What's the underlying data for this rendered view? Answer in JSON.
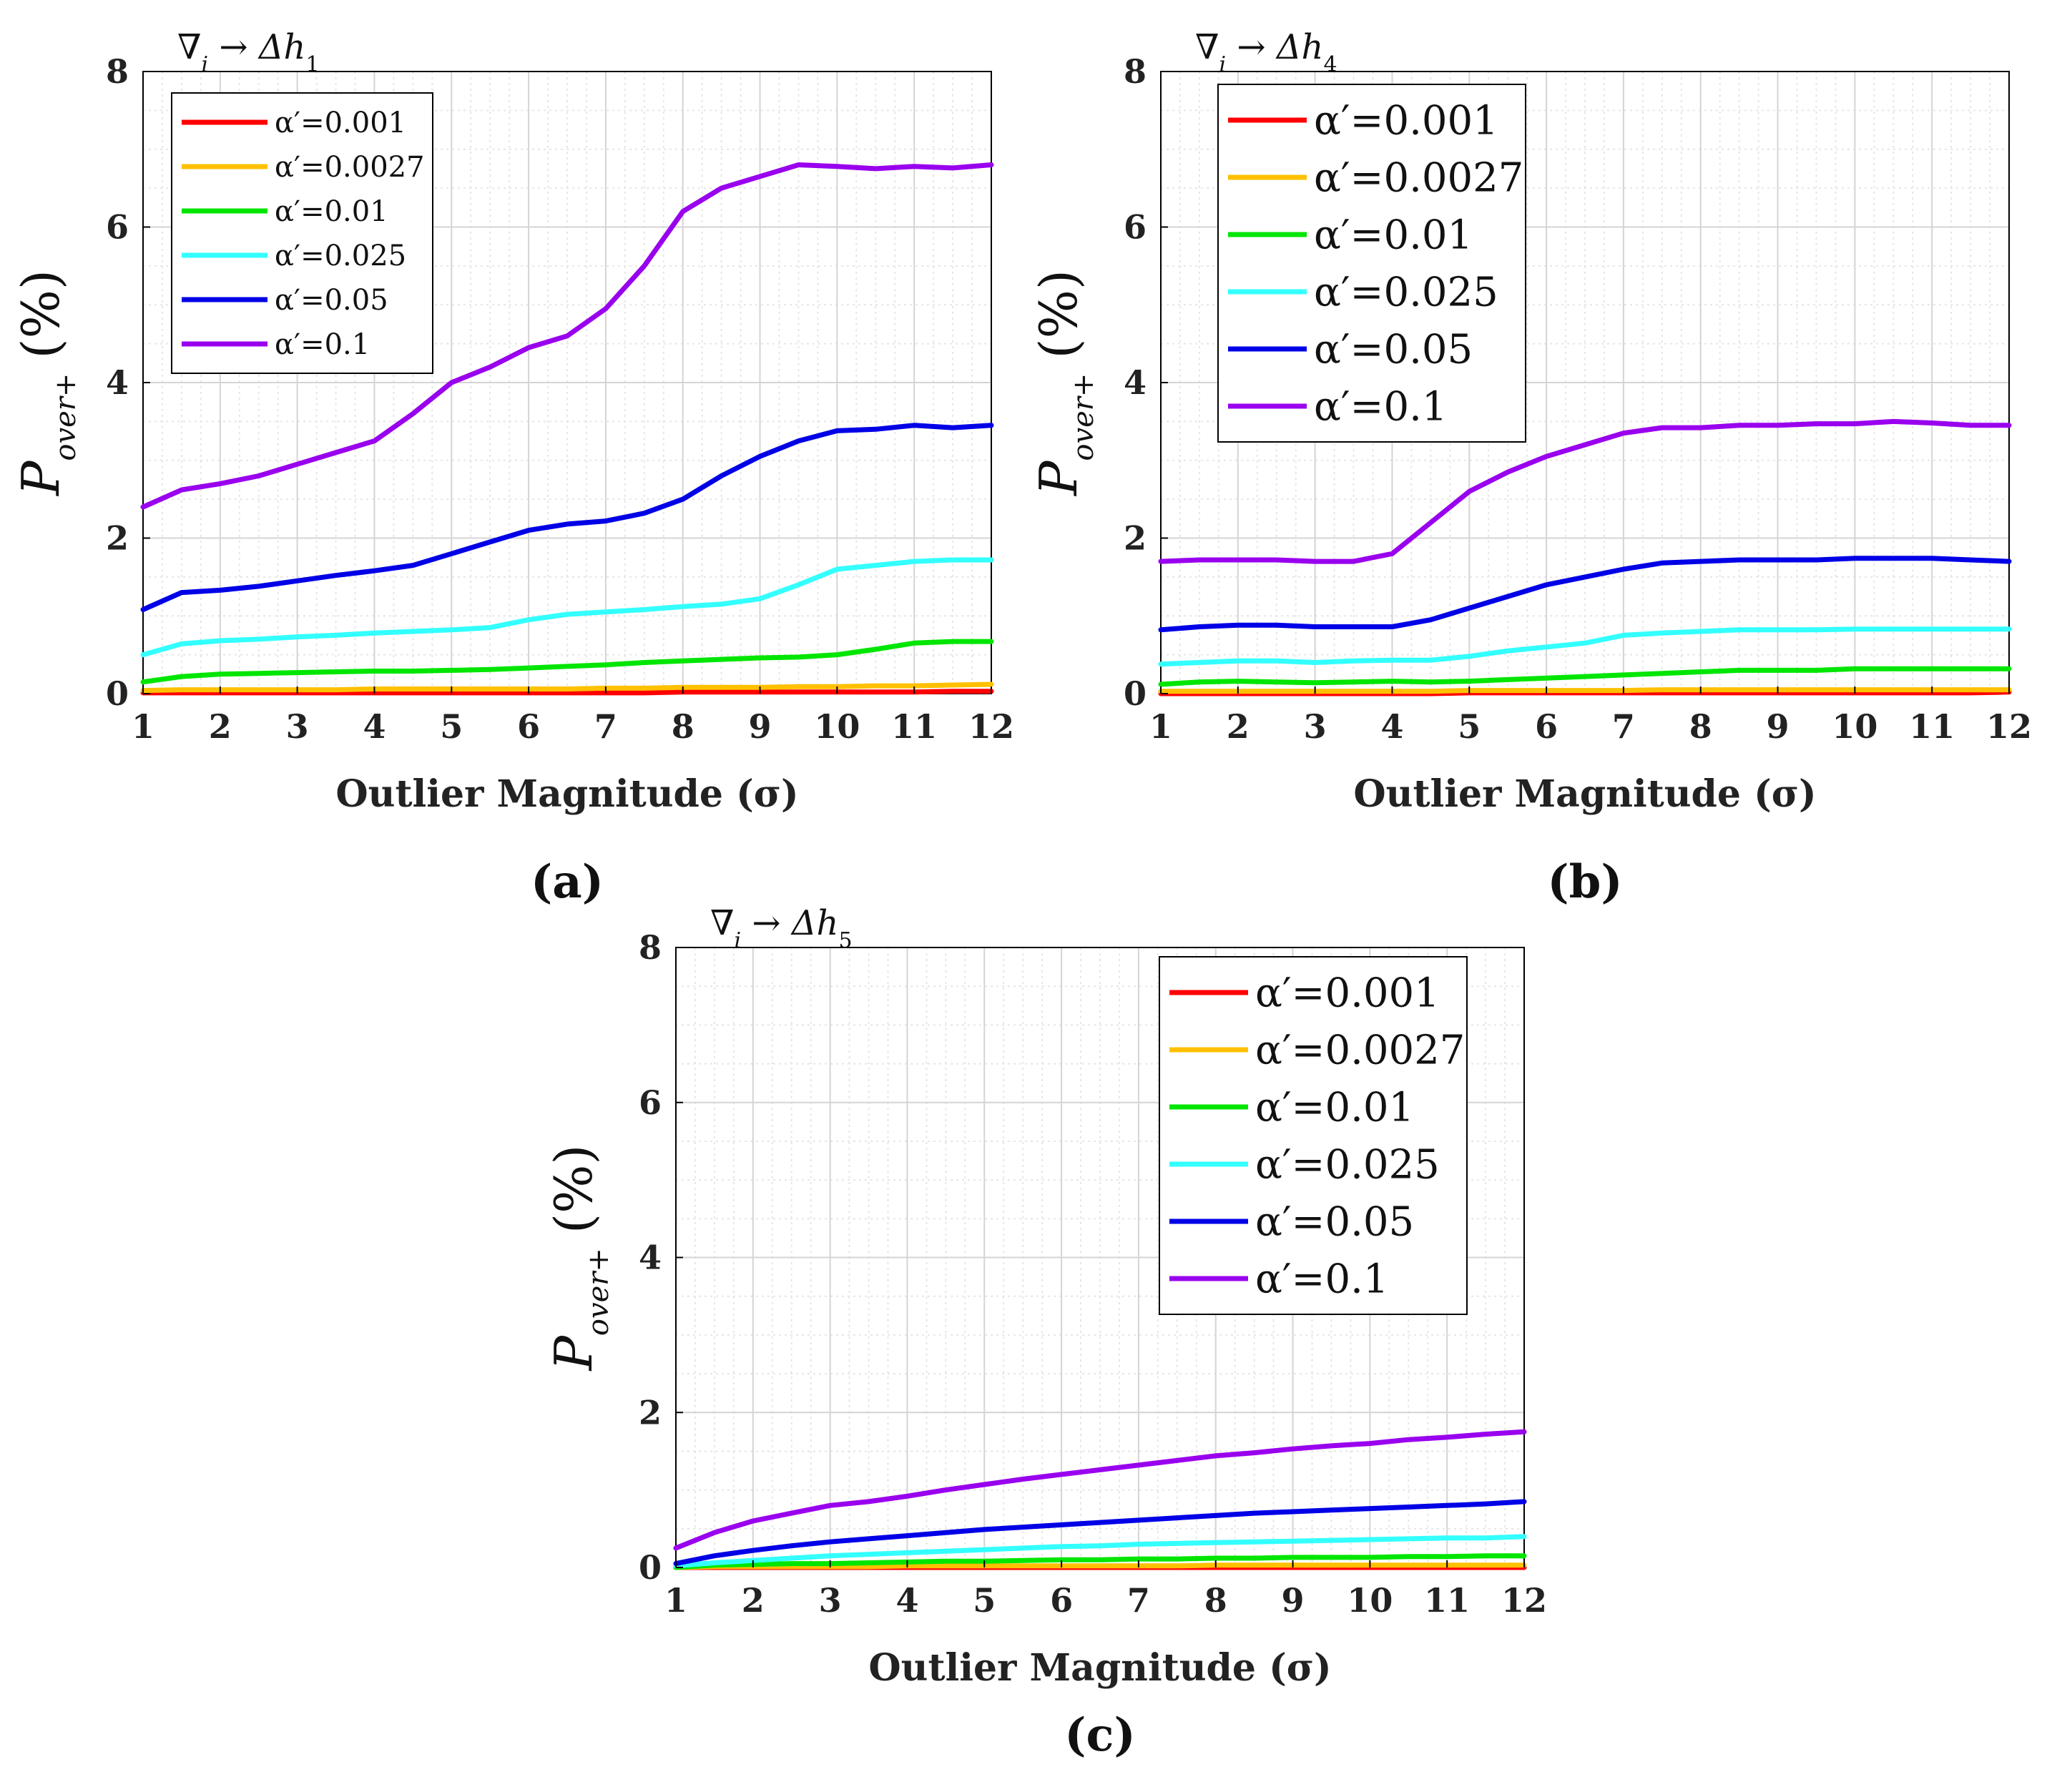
{
  "figure": {
    "captions": [
      "(a)",
      "(b)",
      "(c)"
    ]
  },
  "chart_data": [
    {
      "type": "line",
      "panel": "(a)",
      "title": "∇i → Δh1",
      "title_parts": {
        "nabla": "∇",
        "nabla_sub": "i",
        "arrow": " → ",
        "delta": "Δh",
        "delta_sub": "1"
      },
      "xlabel": "Outlier Magnitude (σ)",
      "ylabel": {
        "main": "P",
        "sub": "over+",
        "unit": "(%)"
      },
      "xlim": [
        1,
        12
      ],
      "ylim": [
        0,
        8
      ],
      "xticks": [
        1,
        2,
        3,
        4,
        5,
        6,
        7,
        8,
        9,
        10,
        11,
        12
      ],
      "yticks": [
        0,
        2,
        4,
        6,
        8
      ],
      "grid": true,
      "legend_position": "top-left",
      "x": [
        1,
        1.5,
        2,
        2.5,
        3,
        3.5,
        4,
        4.5,
        5,
        5.5,
        6,
        6.5,
        7,
        7.5,
        8,
        8.5,
        9,
        9.5,
        10,
        10.5,
        11,
        11.5,
        12
      ],
      "series": [
        {
          "name": "α′=0.001",
          "color": "#ff0000",
          "values": [
            0.01,
            0.01,
            0.01,
            0.01,
            0.01,
            0.01,
            0.01,
            0.01,
            0.01,
            0.01,
            0.01,
            0.01,
            0.01,
            0.01,
            0.02,
            0.02,
            0.02,
            0.02,
            0.02,
            0.02,
            0.02,
            0.03,
            0.03
          ]
        },
        {
          "name": "α′=0.0027",
          "color": "#ffc000",
          "values": [
            0.04,
            0.05,
            0.05,
            0.05,
            0.05,
            0.05,
            0.06,
            0.06,
            0.06,
            0.06,
            0.06,
            0.06,
            0.07,
            0.07,
            0.08,
            0.08,
            0.08,
            0.09,
            0.09,
            0.1,
            0.1,
            0.11,
            0.12
          ]
        },
        {
          "name": "α′=0.01",
          "color": "#00e600",
          "values": [
            0.15,
            0.22,
            0.25,
            0.26,
            0.27,
            0.28,
            0.29,
            0.29,
            0.3,
            0.31,
            0.33,
            0.35,
            0.37,
            0.4,
            0.42,
            0.44,
            0.46,
            0.47,
            0.5,
            0.57,
            0.65,
            0.67,
            0.67
          ]
        },
        {
          "name": "α′=0.025",
          "color": "#33ffff",
          "values": [
            0.5,
            0.64,
            0.68,
            0.7,
            0.73,
            0.75,
            0.78,
            0.8,
            0.82,
            0.85,
            0.95,
            1.02,
            1.05,
            1.08,
            1.12,
            1.15,
            1.22,
            1.4,
            1.6,
            1.65,
            1.7,
            1.72,
            1.72
          ]
        },
        {
          "name": "α′=0.05",
          "color": "#0000e6",
          "values": [
            1.08,
            1.3,
            1.33,
            1.38,
            1.45,
            1.52,
            1.58,
            1.65,
            1.8,
            1.95,
            2.1,
            2.18,
            2.22,
            2.32,
            2.5,
            2.8,
            3.05,
            3.25,
            3.38,
            3.4,
            3.45,
            3.42,
            3.45
          ]
        },
        {
          "name": "α′=0.1",
          "color": "#9900ee",
          "values": [
            2.4,
            2.62,
            2.7,
            2.8,
            2.95,
            3.1,
            3.25,
            3.6,
            4.0,
            4.2,
            4.45,
            4.6,
            4.95,
            5.5,
            6.2,
            6.5,
            6.65,
            6.8,
            6.78,
            6.75,
            6.78,
            6.76,
            6.8
          ]
        }
      ]
    },
    {
      "type": "line",
      "panel": "(b)",
      "title": "∇i → Δh4",
      "title_parts": {
        "nabla": "∇",
        "nabla_sub": "i",
        "arrow": " → ",
        "delta": "Δh",
        "delta_sub": "4"
      },
      "xlabel": "Outlier Magnitude (σ)",
      "ylabel": {
        "main": "P",
        "sub": "over+",
        "unit": "(%)"
      },
      "xlim": [
        1,
        12
      ],
      "ylim": [
        0,
        8
      ],
      "xticks": [
        1,
        2,
        3,
        4,
        5,
        6,
        7,
        8,
        9,
        10,
        11,
        12
      ],
      "yticks": [
        0,
        2,
        4,
        6,
        8
      ],
      "grid": true,
      "legend_position": "top-left",
      "x": [
        1,
        1.5,
        2,
        2.5,
        3,
        3.5,
        4,
        4.5,
        5,
        5.5,
        6,
        6.5,
        7,
        7.5,
        8,
        8.5,
        9,
        9.5,
        10,
        10.5,
        11,
        11.5,
        12
      ],
      "series": [
        {
          "name": "α′=0.001",
          "color": "#ff0000",
          "values": [
            0.0,
            0.0,
            0.0,
            0.0,
            0.0,
            0.0,
            0.0,
            0.0,
            0.01,
            0.01,
            0.01,
            0.01,
            0.01,
            0.01,
            0.01,
            0.01,
            0.01,
            0.01,
            0.01,
            0.01,
            0.01,
            0.01,
            0.02
          ]
        },
        {
          "name": "α′=0.0027",
          "color": "#ffc000",
          "values": [
            0.03,
            0.03,
            0.03,
            0.03,
            0.03,
            0.03,
            0.03,
            0.03,
            0.04,
            0.04,
            0.04,
            0.04,
            0.04,
            0.05,
            0.05,
            0.05,
            0.05,
            0.05,
            0.05,
            0.05,
            0.05,
            0.05,
            0.05
          ]
        },
        {
          "name": "α′=0.01",
          "color": "#00e600",
          "values": [
            0.12,
            0.15,
            0.16,
            0.15,
            0.14,
            0.15,
            0.16,
            0.15,
            0.16,
            0.18,
            0.2,
            0.22,
            0.24,
            0.26,
            0.28,
            0.3,
            0.3,
            0.3,
            0.32,
            0.32,
            0.32,
            0.32,
            0.32
          ]
        },
        {
          "name": "α′=0.025",
          "color": "#33ffff",
          "values": [
            0.38,
            0.4,
            0.42,
            0.42,
            0.4,
            0.42,
            0.43,
            0.43,
            0.48,
            0.55,
            0.6,
            0.65,
            0.75,
            0.78,
            0.8,
            0.82,
            0.82,
            0.82,
            0.83,
            0.83,
            0.83,
            0.83,
            0.83
          ]
        },
        {
          "name": "α′=0.05",
          "color": "#0000e6",
          "values": [
            0.82,
            0.86,
            0.88,
            0.88,
            0.86,
            0.86,
            0.86,
            0.95,
            1.1,
            1.25,
            1.4,
            1.5,
            1.6,
            1.68,
            1.7,
            1.72,
            1.72,
            1.72,
            1.74,
            1.74,
            1.74,
            1.72,
            1.7
          ]
        },
        {
          "name": "α′=0.1",
          "color": "#9900ee",
          "values": [
            1.7,
            1.72,
            1.72,
            1.72,
            1.7,
            1.7,
            1.8,
            2.2,
            2.6,
            2.85,
            3.05,
            3.2,
            3.35,
            3.42,
            3.42,
            3.45,
            3.45,
            3.47,
            3.47,
            3.5,
            3.48,
            3.45,
            3.45
          ]
        }
      ]
    },
    {
      "type": "line",
      "panel": "(c)",
      "title": "∇i → Δh5",
      "title_parts": {
        "nabla": "∇",
        "nabla_sub": "i",
        "arrow": " → ",
        "delta": "Δh",
        "delta_sub": "5"
      },
      "xlabel": "Outlier Magnitude (σ)",
      "ylabel": {
        "main": "P",
        "sub": "over+",
        "unit": "(%)"
      },
      "xlim": [
        1,
        12
      ],
      "ylim": [
        0,
        8
      ],
      "xticks": [
        1,
        2,
        3,
        4,
        5,
        6,
        7,
        8,
        9,
        10,
        11,
        12
      ],
      "yticks": [
        0,
        2,
        4,
        6,
        8
      ],
      "grid": true,
      "legend_position": "top-right",
      "x": [
        1,
        1.5,
        2,
        2.5,
        3,
        3.5,
        4,
        4.5,
        5,
        5.5,
        6,
        6.5,
        7,
        7.5,
        8,
        8.5,
        9,
        9.5,
        10,
        10.5,
        11,
        11.5,
        12
      ],
      "series": [
        {
          "name": "α′=0.001",
          "color": "#ff0000",
          "values": [
            0.0,
            0.0,
            0.0,
            0.0,
            0.0,
            0.0,
            0.0,
            0.0,
            0.0,
            0.0,
            0.0,
            0.0,
            0.0,
            0.0,
            0.0,
            0.0,
            0.0,
            0.0,
            0.0,
            0.0,
            0.0,
            0.0,
            0.0
          ]
        },
        {
          "name": "α′=0.0027",
          "color": "#ffc000",
          "values": [
            0.0,
            0.01,
            0.01,
            0.01,
            0.01,
            0.01,
            0.02,
            0.02,
            0.02,
            0.02,
            0.02,
            0.02,
            0.02,
            0.02,
            0.03,
            0.03,
            0.03,
            0.03,
            0.03,
            0.03,
            0.03,
            0.03,
            0.03
          ]
        },
        {
          "name": "α′=0.01",
          "color": "#00e600",
          "values": [
            0.0,
            0.03,
            0.04,
            0.05,
            0.05,
            0.06,
            0.07,
            0.08,
            0.08,
            0.09,
            0.1,
            0.1,
            0.11,
            0.11,
            0.12,
            0.12,
            0.13,
            0.13,
            0.13,
            0.14,
            0.14,
            0.15,
            0.15
          ]
        },
        {
          "name": "α′=0.025",
          "color": "#33ffff",
          "values": [
            0.02,
            0.06,
            0.09,
            0.12,
            0.15,
            0.17,
            0.19,
            0.21,
            0.23,
            0.25,
            0.27,
            0.28,
            0.3,
            0.31,
            0.32,
            0.33,
            0.34,
            0.35,
            0.36,
            0.37,
            0.38,
            0.38,
            0.4
          ]
        },
        {
          "name": "α′=0.05",
          "color": "#0000e6",
          "values": [
            0.05,
            0.15,
            0.22,
            0.28,
            0.33,
            0.37,
            0.41,
            0.45,
            0.49,
            0.52,
            0.55,
            0.58,
            0.61,
            0.64,
            0.67,
            0.7,
            0.72,
            0.74,
            0.76,
            0.78,
            0.8,
            0.82,
            0.85
          ]
        },
        {
          "name": "α′=0.1",
          "color": "#9900ee",
          "values": [
            0.25,
            0.45,
            0.6,
            0.7,
            0.8,
            0.85,
            0.92,
            1.0,
            1.07,
            1.14,
            1.2,
            1.26,
            1.32,
            1.38,
            1.44,
            1.48,
            1.53,
            1.57,
            1.6,
            1.65,
            1.68,
            1.72,
            1.75
          ]
        }
      ]
    }
  ]
}
